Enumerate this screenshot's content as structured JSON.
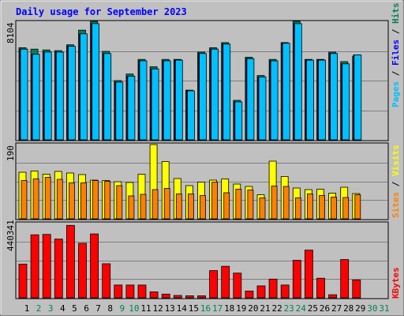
{
  "chart_data": [
    {
      "type": "bar",
      "title": "Daily usage for September 2023",
      "ylabel_max": "8104",
      "legend": [
        "Pages",
        "Files",
        "Hits"
      ],
      "categories": [
        "1",
        "2",
        "3",
        "4",
        "5",
        "6",
        "7",
        "8",
        "9",
        "10",
        "11",
        "12",
        "13",
        "14",
        "15",
        "16",
        "17",
        "18",
        "19",
        "20",
        "21",
        "22",
        "23",
        "24",
        "25",
        "26",
        "27",
        "28",
        "29",
        "30",
        "31"
      ],
      "weekend_days": [
        2,
        3,
        9,
        10,
        16,
        17,
        23,
        24,
        30,
        31
      ],
      "ylim": [
        0,
        8104
      ],
      "series": [
        {
          "name": "Hits",
          "values": [
            6300,
            6200,
            6150,
            6100,
            6500,
            7500,
            8104,
            6050,
            4050,
            4500,
            5500,
            5000,
            5500,
            5500,
            3400,
            6000,
            6300,
            6650,
            2700,
            5650,
            4400,
            5500,
            6650,
            8104,
            5500,
            5500,
            6000,
            5350,
            5700,
            null,
            null
          ]
        },
        {
          "name": "Files",
          "values": [
            6200,
            5850,
            6000,
            6000,
            6400,
            7250,
            7950,
            5900,
            3950,
            4350,
            5400,
            4850,
            5400,
            5450,
            3350,
            5900,
            6200,
            6550,
            2600,
            5550,
            4300,
            5400,
            6600,
            7950,
            5450,
            5450,
            5900,
            5200,
            5800,
            null,
            null
          ]
        },
        {
          "name": "Pages",
          "values": [
            6200,
            5850,
            6000,
            6000,
            6400,
            7250,
            7950,
            5900,
            3950,
            4350,
            5400,
            4850,
            5400,
            5450,
            3350,
            5900,
            6200,
            6550,
            2600,
            5550,
            4300,
            5400,
            6600,
            7950,
            5450,
            5450,
            5900,
            5200,
            5800,
            null,
            null
          ]
        }
      ]
    },
    {
      "type": "bar",
      "ylabel_max": "190",
      "legend": [
        "Sites",
        "Visits"
      ],
      "categories": [
        "1",
        "2",
        "3",
        "4",
        "5",
        "6",
        "7",
        "8",
        "9",
        "10",
        "11",
        "12",
        "13",
        "14",
        "15",
        "16",
        "17",
        "18",
        "19",
        "20",
        "21",
        "22",
        "23",
        "24",
        "25",
        "26",
        "27",
        "28",
        "29",
        "30",
        "31"
      ],
      "ylim": [
        0,
        190
      ],
      "series": [
        {
          "name": "Visits",
          "values": [
            118,
            121,
            113,
            120,
            116,
            112,
            98,
            97,
            94,
            92,
            113,
            188,
            145,
            102,
            84,
            93,
            98,
            101,
            88,
            82,
            61,
            146,
            107,
            78,
            74,
            75,
            65,
            80,
            64,
            null,
            null
          ]
        },
        {
          "name": "Sites",
          "values": [
            97,
            101,
            105,
            100,
            91,
            91,
            97,
            95,
            84,
            58,
            62,
            74,
            77,
            63,
            63,
            59,
            93,
            66,
            75,
            73,
            53,
            83,
            82,
            53,
            63,
            59,
            55,
            54,
            61,
            null,
            null
          ]
        }
      ]
    },
    {
      "type": "bar",
      "ylabel_max": "440341",
      "legend": [
        "KBytes"
      ],
      "categories": [
        "1",
        "2",
        "3",
        "4",
        "5",
        "6",
        "7",
        "8",
        "9",
        "10",
        "11",
        "12",
        "13",
        "14",
        "15",
        "16",
        "17",
        "18",
        "19",
        "20",
        "21",
        "22",
        "23",
        "24",
        "25",
        "26",
        "27",
        "28",
        "29",
        "30",
        "31"
      ],
      "ylim": [
        0,
        440341
      ],
      "series": [
        {
          "name": "KBytes",
          "values": [
            198000,
            370000,
            372000,
            345000,
            425000,
            320000,
            375000,
            200000,
            75000,
            75000,
            75000,
            35000,
            22000,
            14000,
            12000,
            12000,
            160000,
            185000,
            145000,
            40000,
            70000,
            110000,
            75000,
            220000,
            280000,
            115000,
            18000,
            225000,
            105000,
            null,
            null
          ]
        }
      ]
    }
  ],
  "colors": {
    "hits": "#00805c",
    "files": "#0000ff",
    "pages": "#00c0ff",
    "visits": "#ffff00",
    "sites": "#ff8000",
    "kbytes": "#ff0000",
    "title": "#0000ff",
    "weekday_label": "#000000",
    "weekend_label": "#00805c"
  }
}
